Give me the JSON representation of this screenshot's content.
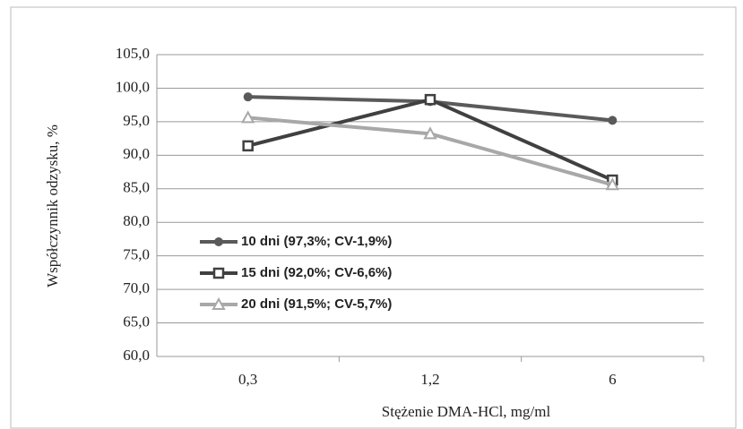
{
  "chart_data": {
    "type": "line",
    "xlabel": "Stężenie DMA-HCl,  mg/ml",
    "ylabel": "Współczynnik odzysku,  %",
    "categories": [
      "0,3",
      "1,2",
      "6"
    ],
    "series": [
      {
        "name": "10 dni  (97,3%; CV-1,9%)",
        "color": "#5a5a5a",
        "marker": "circle",
        "values": [
          98.7,
          98.0,
          95.2
        ]
      },
      {
        "name": "15 dni  (92,0%;  CV-6,6%)",
        "color": "#404040",
        "marker": "square",
        "values": [
          91.4,
          98.3,
          86.3
        ]
      },
      {
        "name": "20 dni  (91,5%;  CV-5,7%)",
        "color": "#a8a8a8",
        "marker": "triangle",
        "values": [
          95.6,
          93.2,
          85.6
        ]
      }
    ],
    "ylim": [
      60,
      105
    ],
    "yticks": [
      {
        "value": 60,
        "label": "60,0"
      },
      {
        "value": 65,
        "label": "65,0"
      },
      {
        "value": 70,
        "label": "70,0"
      },
      {
        "value": 75,
        "label": "75,0"
      },
      {
        "value": 80,
        "label": "80,0"
      },
      {
        "value": 85,
        "label": "85,0"
      },
      {
        "value": 90,
        "label": "90,0"
      },
      {
        "value": 95,
        "label": "95,0"
      },
      {
        "value": 100,
        "label": "100,0"
      },
      {
        "value": 105,
        "label": "105,0"
      }
    ],
    "grid": true
  }
}
